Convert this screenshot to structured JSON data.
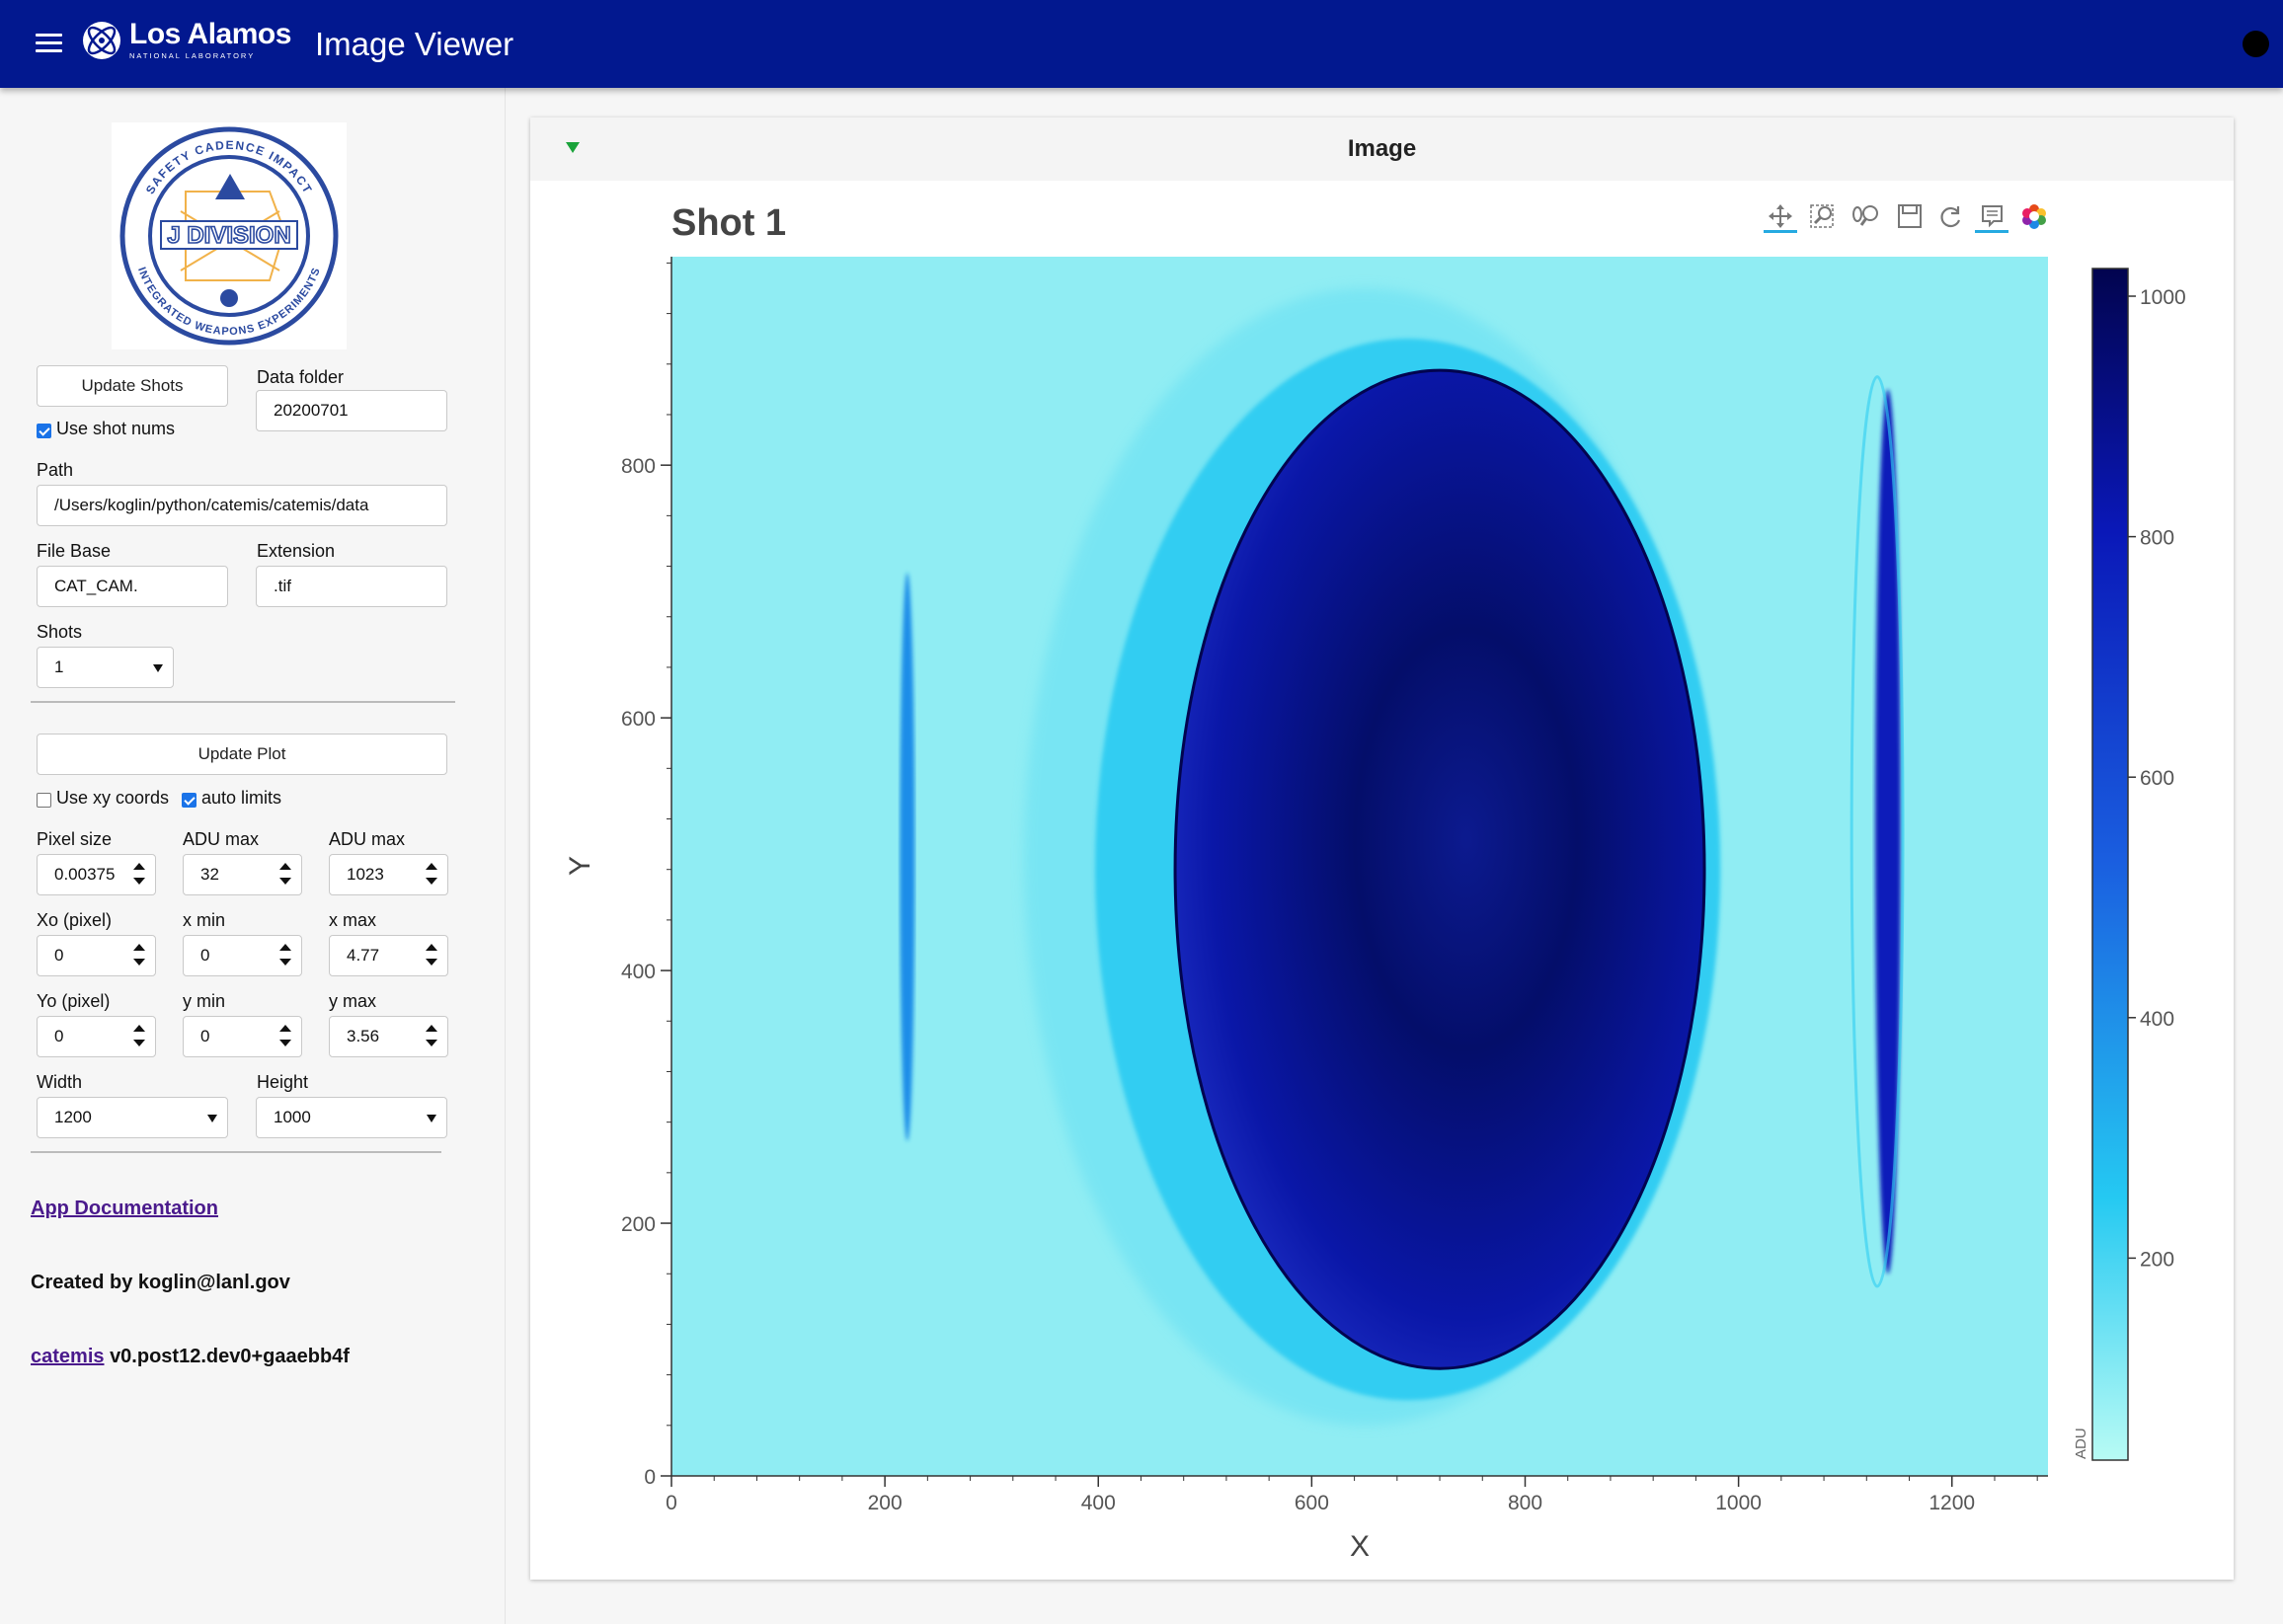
{
  "header": {
    "logo_name": "Los Alamos",
    "logo_sub": "NATIONAL LABORATORY",
    "title": "Image Viewer"
  },
  "sidebar": {
    "emblem": {
      "top_text": "SAFETY CADENCE IMPACT",
      "center_text": "J DIVISION",
      "bottom_text": "INTEGRATED WEAPONS EXPERIMENTS"
    },
    "update_shots_label": "Update Shots",
    "data_folder_label": "Data folder",
    "data_folder_value": "20200701",
    "use_shot_nums_label": "Use shot nums",
    "path_label": "Path",
    "path_value": "/Users/koglin/python/catemis/catemis/data",
    "file_base_label": "File Base",
    "file_base_value": "CAT_CAM.",
    "extension_label": "Extension",
    "extension_value": ".tif",
    "shots_label": "Shots",
    "shots_value": "1",
    "update_plot_label": "Update Plot",
    "use_xy_label": "Use xy coords",
    "auto_limits_label": "auto limits",
    "pixel_size_label": "Pixel size",
    "pixel_size_value": "0.00375",
    "adu_min_label": "ADU max",
    "adu_min_value": "32",
    "adu_max_label": "ADU max",
    "adu_max_value": "1023",
    "xo_label": "Xo (pixel)",
    "xo_value": "0",
    "xmin_label": "x min",
    "xmin_value": "0",
    "xmax_label": "x max",
    "xmax_value": "4.77",
    "yo_label": "Yo (pixel)",
    "yo_value": "0",
    "ymin_label": "y min",
    "ymin_value": "0",
    "ymax_label": "y max",
    "ymax_value": "3.56",
    "width_label": "Width",
    "width_value": "1200",
    "height_label": "Height",
    "height_value": "1000",
    "doc_link": "App Documentation",
    "created_by": "Created by koglin@lanl.gov",
    "pkg_link": "catemis",
    "version": "v0.post12.dev0+gaaebb4f"
  },
  "card": {
    "title": "Image"
  },
  "toolbar": {
    "tools": [
      "pan-icon",
      "box-zoom-icon",
      "wheel-zoom-icon",
      "save-icon",
      "reset-icon",
      "hover-icon",
      "bokeh-logo-icon"
    ]
  },
  "chart_data": {
    "type": "heatmap",
    "title": "Shot 1",
    "xlabel": "X",
    "ylabel": "Y",
    "xlim": [
      0,
      1290
    ],
    "ylim": [
      0,
      965
    ],
    "xticks": [
      0,
      200,
      400,
      600,
      800,
      1000,
      1200
    ],
    "yticks": [
      0,
      200,
      400,
      600,
      800
    ],
    "colorbar": {
      "label": "ADU",
      "range": [
        32,
        1023
      ],
      "ticks": [
        200,
        400,
        600,
        800,
        1000
      ],
      "colors": [
        "#b8fbf4",
        "#25c9f2",
        "#1a5fe0",
        "#0a18b8",
        "#02044f"
      ]
    },
    "background_level": 100,
    "features": [
      {
        "name": "main-ellipse",
        "cx": 720,
        "cy": 480,
        "rx": 248,
        "ry": 395,
        "level": 950
      },
      {
        "name": "left-halo",
        "cx": 640,
        "cy": 490,
        "rx": 225,
        "ry": 320,
        "level": 550
      },
      {
        "name": "left-streak",
        "cx": 221,
        "cy": 490,
        "rx": 7,
        "ry": 225,
        "level": 420
      },
      {
        "name": "right-streak",
        "cx": 1140,
        "cy": 510,
        "rx": 12,
        "ry": 350,
        "level": 760
      }
    ]
  }
}
